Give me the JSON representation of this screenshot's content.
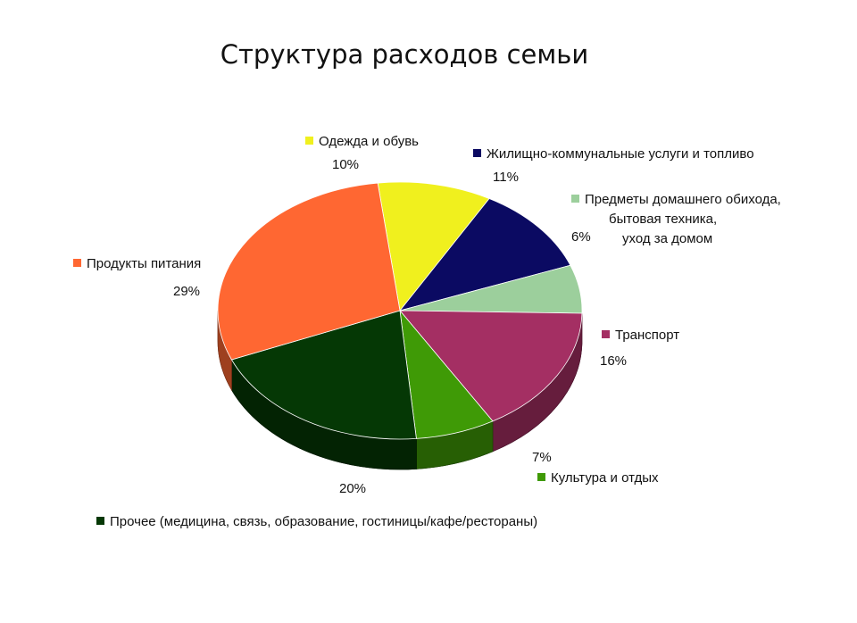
{
  "chart_data": {
    "type": "pie",
    "title": "Структура расходов семьи",
    "slices": [
      {
        "label": "Одежда и обувь",
        "value": 10,
        "pct_text": "10%",
        "color": "#f0f01e"
      },
      {
        "label": "Жилищно-коммунальные услуги и топливо",
        "value": 11,
        "pct_text": "11%",
        "color": "#0b0a62"
      },
      {
        "label": "Предметы домашнего обихода,\nбытовая техника,\nуход за домом",
        "value": 6,
        "pct_text": "6%",
        "color": "#9ccf9c"
      },
      {
        "label": "Транспорт",
        "value": 16,
        "pct_text": "16%",
        "color": "#a42f63"
      },
      {
        "label": "Культура и отдых",
        "value": 7,
        "pct_text": "7%",
        "color": "#3f9a06"
      },
      {
        "label": "Прочее (медицина, связь, образование, гостиницы/кафе/рестораны)",
        "value": 20,
        "pct_text": "20%",
        "color": "#053805"
      },
      {
        "label": "Продукты питания",
        "value": 29,
        "pct_text": "29%",
        "color": "#ff6732"
      }
    ],
    "legend": "labels-around-pie"
  }
}
